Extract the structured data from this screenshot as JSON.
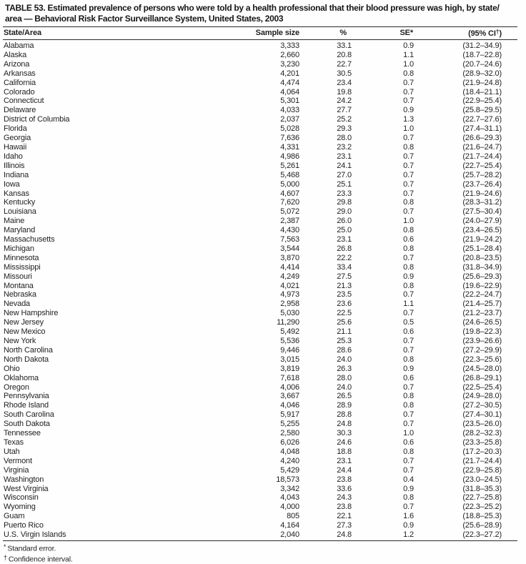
{
  "title_line1": "TABLE 53. Estimated prevalence of persons who were told by a health professional that their blood pressure was high, by state/",
  "title_line2": "area — Behavioral Risk Factor Surveillance System, United States, 2003",
  "table": {
    "headers": {
      "state": "State/Area",
      "sample_size": "Sample size",
      "pct": "%",
      "se": "SE*",
      "ci_prefix": "(95% CI",
      "ci_dagger": "†",
      "ci_suffix": ")"
    },
    "rows": [
      {
        "state": "Alabama",
        "sample_size": "3,333",
        "pct": "33.1",
        "se": "0.9",
        "ci": "(31.2–34.9)"
      },
      {
        "state": "Alaska",
        "sample_size": "2,660",
        "pct": "20.8",
        "se": "1.1",
        "ci": "(18.7–22.8)"
      },
      {
        "state": "Arizona",
        "sample_size": "3,230",
        "pct": "22.7",
        "se": "1.0",
        "ci": "(20.7–24.6)"
      },
      {
        "state": "Arkansas",
        "sample_size": "4,201",
        "pct": "30.5",
        "se": "0.8",
        "ci": "(28.9–32.0)"
      },
      {
        "state": "California",
        "sample_size": "4,474",
        "pct": "23.4",
        "se": "0.7",
        "ci": "(21.9–24.8)"
      },
      {
        "state": "Colorado",
        "sample_size": "4,064",
        "pct": "19.8",
        "se": "0.7",
        "ci": "(18.4–21.1)"
      },
      {
        "state": "Connecticut",
        "sample_size": "5,301",
        "pct": "24.2",
        "se": "0.7",
        "ci": "(22.9–25.4)"
      },
      {
        "state": "Delaware",
        "sample_size": "4,033",
        "pct": "27.7",
        "se": "0.9",
        "ci": "(25.8–29.5)"
      },
      {
        "state": "District of Columbia",
        "sample_size": "2,037",
        "pct": "25.2",
        "se": "1.3",
        "ci": "(22.7–27.6)"
      },
      {
        "state": "Florida",
        "sample_size": "5,028",
        "pct": "29.3",
        "se": "1.0",
        "ci": "(27.4–31.1)"
      },
      {
        "state": "Georgia",
        "sample_size": "7,636",
        "pct": "28.0",
        "se": "0.7",
        "ci": "(26.6–29.3)"
      },
      {
        "state": "Hawaii",
        "sample_size": "4,331",
        "pct": "23.2",
        "se": "0.8",
        "ci": "(21.6–24.7)"
      },
      {
        "state": "Idaho",
        "sample_size": "4,986",
        "pct": "23.1",
        "se": "0.7",
        "ci": "(21.7–24.4)"
      },
      {
        "state": "Illinois",
        "sample_size": "5,261",
        "pct": "24.1",
        "se": "0.7",
        "ci": "(22.7–25.4)"
      },
      {
        "state": "Indiana",
        "sample_size": "5,468",
        "pct": "27.0",
        "se": "0.7",
        "ci": "(25.7–28.2)"
      },
      {
        "state": "Iowa",
        "sample_size": "5,000",
        "pct": "25.1",
        "se": "0.7",
        "ci": "(23.7–26.4)"
      },
      {
        "state": "Kansas",
        "sample_size": "4,607",
        "pct": "23.3",
        "se": "0.7",
        "ci": "(21.9–24.6)"
      },
      {
        "state": "Kentucky",
        "sample_size": "7,620",
        "pct": "29.8",
        "se": "0.8",
        "ci": "(28.3–31.2)"
      },
      {
        "state": "Louisiana",
        "sample_size": "5,072",
        "pct": "29.0",
        "se": "0.7",
        "ci": "(27.5–30.4)"
      },
      {
        "state": "Maine",
        "sample_size": "2,387",
        "pct": "26.0",
        "se": "1.0",
        "ci": "(24.0–27.9)"
      },
      {
        "state": "Maryland",
        "sample_size": "4,430",
        "pct": "25.0",
        "se": "0.8",
        "ci": "(23.4–26.5)"
      },
      {
        "state": "Massachusetts",
        "sample_size": "7,563",
        "pct": "23.1",
        "se": "0.6",
        "ci": "(21.9–24.2)"
      },
      {
        "state": "Michigan",
        "sample_size": "3,544",
        "pct": "26.8",
        "se": "0.8",
        "ci": "(25.1–28.4)"
      },
      {
        "state": "Minnesota",
        "sample_size": "3,870",
        "pct": "22.2",
        "se": "0.7",
        "ci": "(20.8–23.5)"
      },
      {
        "state": "Mississippi",
        "sample_size": "4,414",
        "pct": "33.4",
        "se": "0.8",
        "ci": "(31.8–34.9)"
      },
      {
        "state": "Missouri",
        "sample_size": "4,249",
        "pct": "27.5",
        "se": "0.9",
        "ci": "(25.6–29.3)"
      },
      {
        "state": "Montana",
        "sample_size": "4,021",
        "pct": "21.3",
        "se": "0.8",
        "ci": "(19.6–22.9)"
      },
      {
        "state": "Nebraska",
        "sample_size": "4,973",
        "pct": "23.5",
        "se": "0.7",
        "ci": "(22.2–24.7)"
      },
      {
        "state": "Nevada",
        "sample_size": "2,958",
        "pct": "23.6",
        "se": "1.1",
        "ci": "(21.4–25.7)"
      },
      {
        "state": "New Hampshire",
        "sample_size": "5,030",
        "pct": "22.5",
        "se": "0.7",
        "ci": "(21.2–23.7)"
      },
      {
        "state": "New Jersey",
        "sample_size": "11,290",
        "pct": "25.6",
        "se": "0.5",
        "ci": "(24.6–26.5)"
      },
      {
        "state": "New Mexico",
        "sample_size": "5,492",
        "pct": "21.1",
        "se": "0.6",
        "ci": "(19.8–22.3)"
      },
      {
        "state": "New York",
        "sample_size": "5,536",
        "pct": "25.3",
        "se": "0.7",
        "ci": "(23.9–26.6)"
      },
      {
        "state": "North Carolina",
        "sample_size": "9,446",
        "pct": "28.6",
        "se": "0.7",
        "ci": "(27.2–29.9)"
      },
      {
        "state": "North Dakota",
        "sample_size": "3,015",
        "pct": "24.0",
        "se": "0.8",
        "ci": "(22.3–25.6)"
      },
      {
        "state": "Ohio",
        "sample_size": "3,819",
        "pct": "26.3",
        "se": "0.9",
        "ci": "(24.5–28.0)"
      },
      {
        "state": "Oklahoma",
        "sample_size": "7,618",
        "pct": "28.0",
        "se": "0.6",
        "ci": "(26.8–29.1)"
      },
      {
        "state": "Oregon",
        "sample_size": "4,006",
        "pct": "24.0",
        "se": "0.7",
        "ci": "(22.5–25.4)"
      },
      {
        "state": "Pennsylvania",
        "sample_size": "3,667",
        "pct": "26.5",
        "se": "0.8",
        "ci": "(24.9–28.0)"
      },
      {
        "state": "Rhode Island",
        "sample_size": "4,046",
        "pct": "28.9",
        "se": "0.8",
        "ci": "(27.2–30.5)"
      },
      {
        "state": "South Carolina",
        "sample_size": "5,917",
        "pct": "28.8",
        "se": "0.7",
        "ci": "(27.4–30.1)"
      },
      {
        "state": "South Dakota",
        "sample_size": "5,255",
        "pct": "24.8",
        "se": "0.7",
        "ci": "(23.5–26.0)"
      },
      {
        "state": "Tennessee",
        "sample_size": "2,580",
        "pct": "30.3",
        "se": "1.0",
        "ci": "(28.2–32.3)"
      },
      {
        "state": "Texas",
        "sample_size": "6,026",
        "pct": "24.6",
        "se": "0.6",
        "ci": "(23.3–25.8)"
      },
      {
        "state": "Utah",
        "sample_size": "4,048",
        "pct": "18.8",
        "se": "0.8",
        "ci": "(17.2–20.3)"
      },
      {
        "state": "Vermont",
        "sample_size": "4,240",
        "pct": "23.1",
        "se": "0.7",
        "ci": "(21.7–24.4)"
      },
      {
        "state": "Virginia",
        "sample_size": "5,429",
        "pct": "24.4",
        "se": "0.7",
        "ci": "(22.9–25.8)"
      },
      {
        "state": "Washington",
        "sample_size": "18,573",
        "pct": "23.8",
        "se": "0.4",
        "ci": "(23.0–24.5)"
      },
      {
        "state": "West Virginia",
        "sample_size": "3,342",
        "pct": "33.6",
        "se": "0.9",
        "ci": "(31.8–35.3)"
      },
      {
        "state": "Wisconsin",
        "sample_size": "4,043",
        "pct": "24.3",
        "se": "0.8",
        "ci": "(22.7–25.8)"
      },
      {
        "state": "Wyoming",
        "sample_size": "4,000",
        "pct": "23.8",
        "se": "0.7",
        "ci": "(22.3–25.2)"
      },
      {
        "state": "Guam",
        "sample_size": "805",
        "pct": "22.1",
        "se": "1.6",
        "ci": "(18.8–25.3)"
      },
      {
        "state": "Puerto Rico",
        "sample_size": "4,164",
        "pct": "27.3",
        "se": "0.9",
        "ci": "(25.6–28.9)"
      },
      {
        "state": "U.S. Virgin Islands",
        "sample_size": "2,040",
        "pct": "24.8",
        "se": "1.2",
        "ci": "(22.3–27.2)"
      }
    ]
  },
  "footnotes": [
    {
      "marker": "*",
      "text": "Standard error."
    },
    {
      "marker": "†",
      "text": "Confidence interval."
    }
  ]
}
